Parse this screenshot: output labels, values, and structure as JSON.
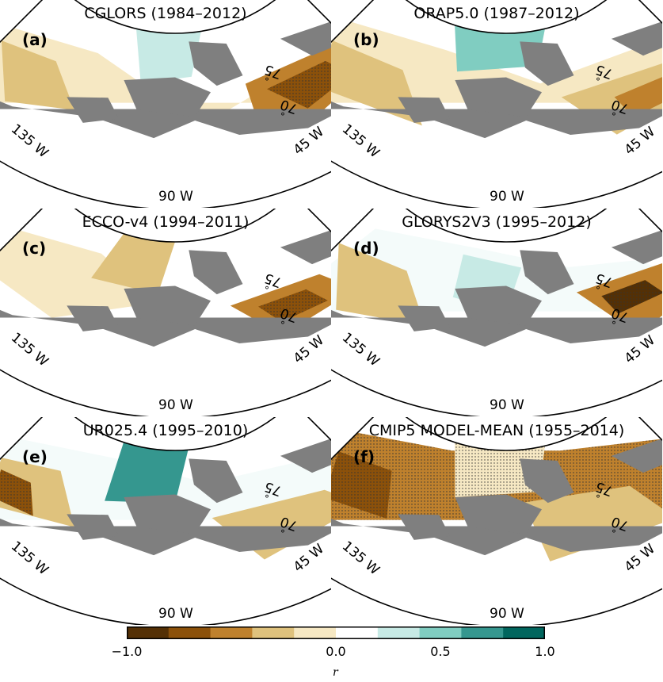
{
  "panels": [
    {
      "id": "a",
      "label": "(a)",
      "title": "CGLORS (1984–2012)",
      "variant": 0
    },
    {
      "id": "b",
      "label": "(b)",
      "title": "ORAP5.0 (1987–2012)",
      "variant": 1
    },
    {
      "id": "c",
      "label": "(c)",
      "title": "ECCO-v4 (1994–2011)",
      "variant": 2
    },
    {
      "id": "d",
      "label": "(d)",
      "title": "GLORYS2V3 (1995–2012)",
      "variant": 3
    },
    {
      "id": "e",
      "label": "(e)",
      "title": "UR025.4 (1995–2010)",
      "variant": 4
    },
    {
      "id": "f",
      "label": "(f)",
      "title": "CMIP5 MODEL-MEAN (1955–2014)",
      "variant": 5
    }
  ],
  "axis_labels": {
    "lon_west": "135 W",
    "lon_mid": "90 W",
    "lon_east": "45 W",
    "lat_75": "75",
    "lat_70": "70",
    "degree": "°"
  },
  "colorbar": {
    "label": "r",
    "ticks": [
      {
        "value": -1.0,
        "text": "−1.0"
      },
      {
        "value": 0.0,
        "text": "0.0"
      },
      {
        "value": 0.5,
        "text": "0.5"
      },
      {
        "value": 1.0,
        "text": "1.0"
      }
    ],
    "colors": [
      "#543005",
      "#8c510a",
      "#bf812d",
      "#dfc27d",
      "#f6e8c3",
      "#ffffff",
      "#f4fbfa",
      "#c7eae5",
      "#80cdc1",
      "#35978f",
      "#01665e",
      "#003c30"
    ],
    "range": [
      -1.0,
      1.0
    ],
    "land_color": "#7f7f7f"
  }
}
